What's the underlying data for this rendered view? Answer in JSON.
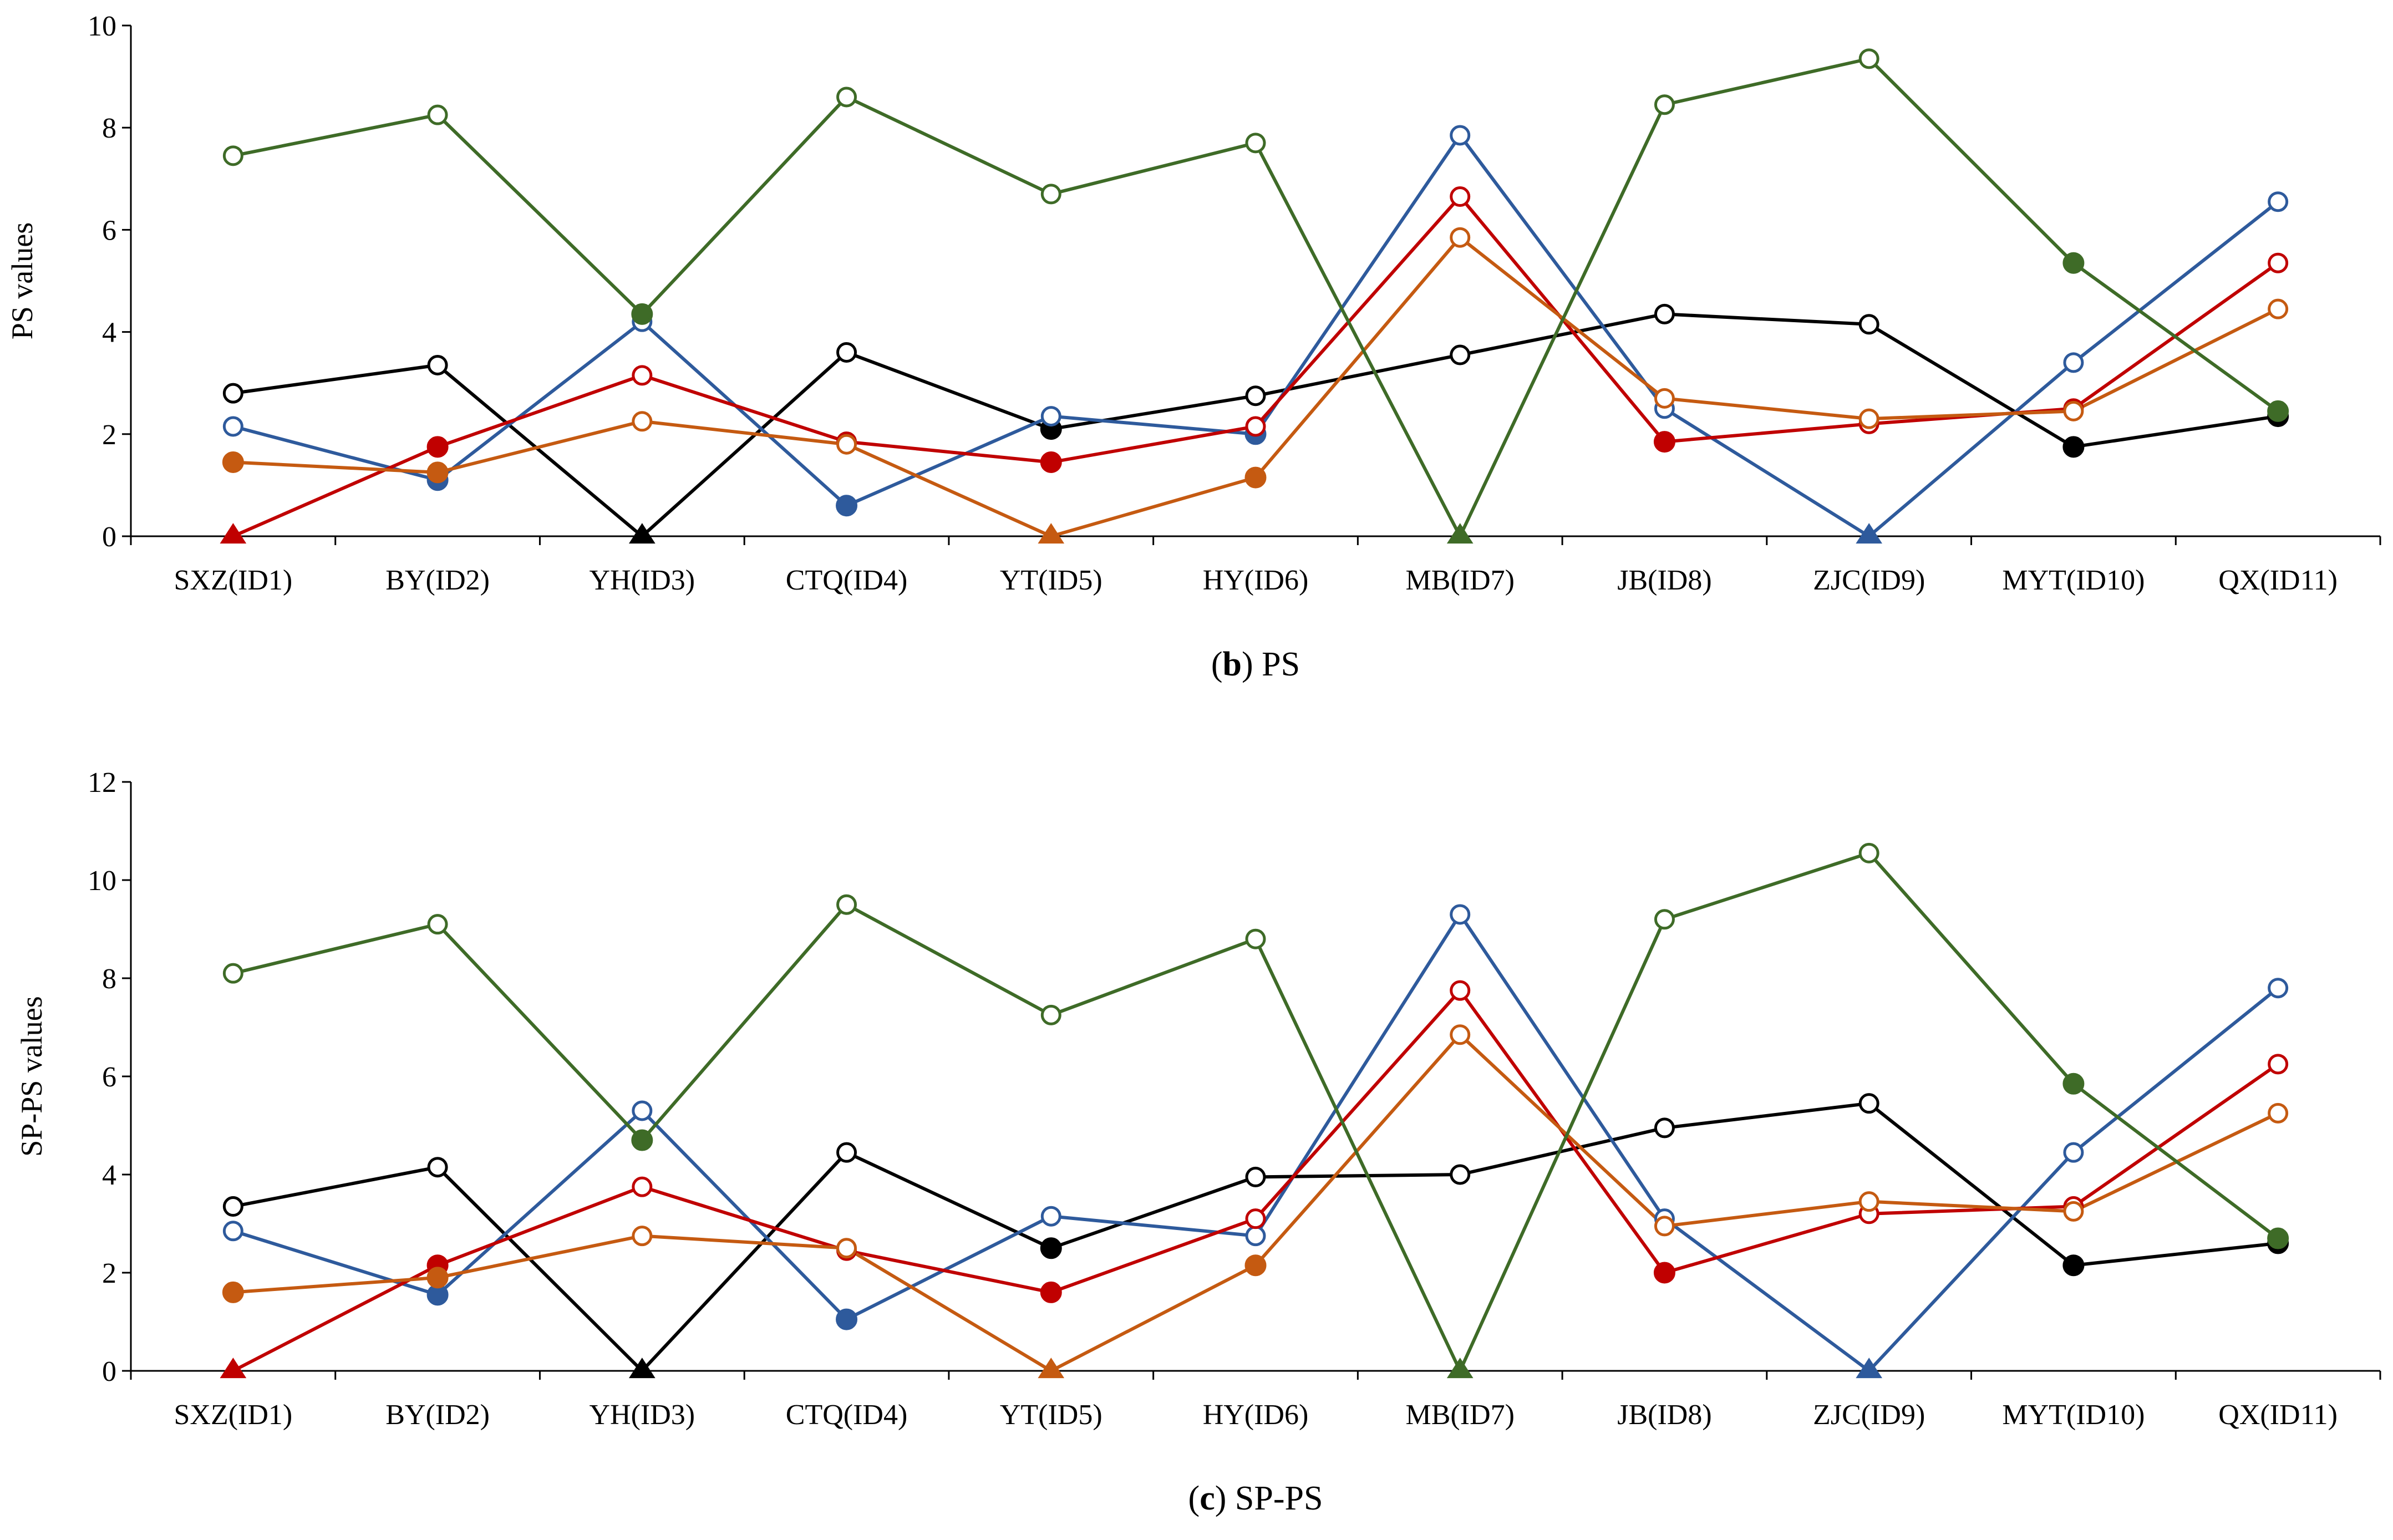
{
  "chart_data": [
    {
      "type": "line",
      "caption_letter": "b",
      "caption_text": "PS",
      "ylabel": "PS values",
      "xlabel": "",
      "ylim": [
        0,
        10
      ],
      "yticks": [
        "0",
        "2",
        "4",
        "6",
        "8",
        "10"
      ],
      "categories": [
        "SXZ(ID1)",
        "BY(ID2)",
        "YH(ID3)",
        "CTQ(ID4)",
        "YT(ID5)",
        "HY(ID6)",
        "MB(ID7)",
        "JB(ID8)",
        "ZJC(ID9)",
        "MYT(ID10)",
        "QX(ID11)"
      ],
      "series": [
        {
          "color": "#000000",
          "values": [
            2.8,
            3.35,
            0,
            3.6,
            2.1,
            2.75,
            3.55,
            4.35,
            4.15,
            1.75,
            2.35
          ],
          "markers": [
            "o",
            "o",
            "t",
            "o",
            "f",
            "o",
            "o",
            "o",
            "o",
            "f",
            "f"
          ]
        },
        {
          "color": "#2e5a9c",
          "values": [
            2.15,
            1.1,
            4.2,
            0.6,
            2.35,
            2.0,
            7.85,
            2.5,
            0,
            3.4,
            6.55
          ],
          "markers": [
            "o",
            "f",
            "o",
            "f",
            "o",
            "f",
            "o",
            "o",
            "t",
            "o",
            "o"
          ]
        },
        {
          "color": "#c00000",
          "values": [
            0,
            1.75,
            3.15,
            1.85,
            1.45,
            2.15,
            6.65,
            1.85,
            2.2,
            2.5,
            5.35
          ],
          "markers": [
            "t",
            "f",
            "o",
            "o",
            "f",
            "o",
            "o",
            "f",
            "o",
            "o",
            "o"
          ]
        },
        {
          "color": "#c55a11",
          "values": [
            1.45,
            1.25,
            2.25,
            1.8,
            0,
            1.15,
            5.85,
            2.7,
            2.3,
            2.45,
            4.45
          ],
          "markers": [
            "f",
            "f",
            "o",
            "o",
            "t",
            "f",
            "o",
            "o",
            "o",
            "o",
            "o"
          ]
        },
        {
          "color": "#3e6b27",
          "values": [
            7.45,
            8.25,
            4.35,
            8.6,
            6.7,
            7.7,
            0,
            8.45,
            9.35,
            5.35,
            2.45
          ],
          "markers": [
            "o",
            "o",
            "f",
            "o",
            "o",
            "o",
            "t",
            "o",
            "o",
            "f",
            "f"
          ]
        }
      ]
    },
    {
      "type": "line",
      "caption_letter": "c",
      "caption_text": "SP-PS",
      "ylabel": "SP-PS values",
      "xlabel": "",
      "ylim": [
        0,
        12
      ],
      "yticks": [
        "0",
        "2",
        "4",
        "6",
        "8",
        "10",
        "12"
      ],
      "categories": [
        "SXZ(ID1)",
        "BY(ID2)",
        "YH(ID3)",
        "CTQ(ID4)",
        "YT(ID5)",
        "HY(ID6)",
        "MB(ID7)",
        "JB(ID8)",
        "ZJC(ID9)",
        "MYT(ID10)",
        "QX(ID11)"
      ],
      "series": [
        {
          "color": "#000000",
          "values": [
            3.35,
            4.15,
            0,
            4.45,
            2.5,
            3.95,
            4.0,
            4.95,
            5.45,
            2.15,
            2.6
          ],
          "markers": [
            "o",
            "o",
            "t",
            "o",
            "f",
            "o",
            "o",
            "o",
            "o",
            "f",
            "f"
          ]
        },
        {
          "color": "#2e5a9c",
          "values": [
            2.85,
            1.55,
            5.3,
            1.05,
            3.15,
            2.75,
            9.3,
            3.1,
            0,
            4.45,
            7.8
          ],
          "markers": [
            "o",
            "f",
            "o",
            "f",
            "o",
            "o",
            "o",
            "o",
            "t",
            "o",
            "o"
          ]
        },
        {
          "color": "#c00000",
          "values": [
            0,
            2.15,
            3.75,
            2.45,
            1.6,
            3.1,
            7.75,
            2.0,
            3.2,
            3.35,
            6.25
          ],
          "markers": [
            "t",
            "f",
            "o",
            "o",
            "f",
            "o",
            "o",
            "f",
            "o",
            "o",
            "o"
          ]
        },
        {
          "color": "#c55a11",
          "values": [
            1.6,
            1.9,
            2.75,
            2.5,
            0,
            2.15,
            6.85,
            2.95,
            3.45,
            3.25,
            5.25
          ],
          "markers": [
            "f",
            "f",
            "o",
            "o",
            "t",
            "f",
            "o",
            "o",
            "o",
            "o",
            "o"
          ]
        },
        {
          "color": "#3e6b27",
          "values": [
            8.1,
            9.1,
            4.7,
            9.5,
            7.25,
            8.8,
            0,
            9.2,
            10.55,
            5.85,
            2.7
          ],
          "markers": [
            "o",
            "o",
            "f",
            "o",
            "o",
            "o",
            "t",
            "o",
            "o",
            "f",
            "f"
          ]
        }
      ]
    }
  ]
}
